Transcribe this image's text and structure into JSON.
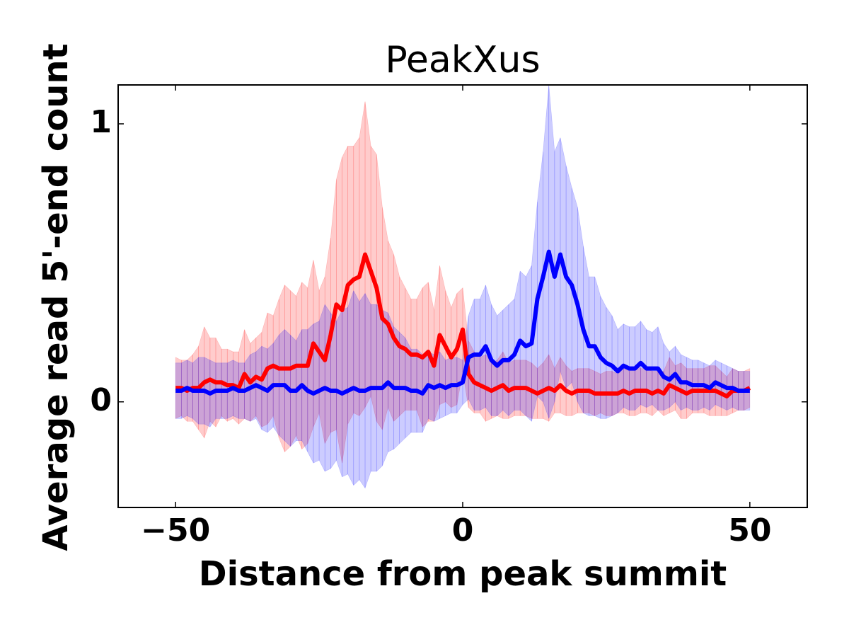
{
  "chart_data": {
    "type": "line",
    "title": "PeakXus",
    "x_label": "Distance from peak summit",
    "y_label": "Average read 5'-end count",
    "x": [
      -50,
      -49,
      -48,
      -47,
      -46,
      -45,
      -44,
      -43,
      -42,
      -41,
      -40,
      -39,
      -38,
      -37,
      -36,
      -35,
      -34,
      -33,
      -32,
      -31,
      -30,
      -29,
      -28,
      -27,
      -26,
      -25,
      -24,
      -23,
      -22,
      -21,
      -20,
      -19,
      -18,
      -17,
      -16,
      -15,
      -14,
      -13,
      -12,
      -11,
      -10,
      -9,
      -8,
      -7,
      -6,
      -5,
      -4,
      -3,
      -2,
      -1,
      0,
      1,
      2,
      3,
      4,
      5,
      6,
      7,
      8,
      9,
      10,
      11,
      12,
      13,
      14,
      15,
      16,
      17,
      18,
      19,
      20,
      21,
      22,
      23,
      24,
      25,
      26,
      27,
      28,
      29,
      30,
      31,
      32,
      33,
      34,
      35,
      36,
      37,
      38,
      39,
      40,
      41,
      42,
      43,
      44,
      45,
      46,
      47,
      48,
      49,
      50
    ],
    "series": [
      {
        "color": "#ff0000",
        "band_color": "rgba(255,0,0,0.2)",
        "values": [
          0.05,
          0.05,
          0.04,
          0.05,
          0.05,
          0.07,
          0.08,
          0.07,
          0.07,
          0.06,
          0.06,
          0.05,
          0.1,
          0.07,
          0.09,
          0.08,
          0.12,
          0.13,
          0.12,
          0.12,
          0.12,
          0.13,
          0.13,
          0.13,
          0.21,
          0.18,
          0.15,
          0.24,
          0.35,
          0.33,
          0.42,
          0.44,
          0.45,
          0.53,
          0.47,
          0.41,
          0.3,
          0.28,
          0.23,
          0.2,
          0.19,
          0.17,
          0.17,
          0.16,
          0.18,
          0.13,
          0.24,
          0.2,
          0.16,
          0.19,
          0.26,
          0.1,
          0.07,
          0.06,
          0.05,
          0.04,
          0.05,
          0.06,
          0.04,
          0.05,
          0.05,
          0.05,
          0.04,
          0.03,
          0.04,
          0.05,
          0.04,
          0.06,
          0.04,
          0.03,
          0.04,
          0.04,
          0.04,
          0.03,
          0.03,
          0.03,
          0.03,
          0.03,
          0.04,
          0.03,
          0.04,
          0.04,
          0.04,
          0.03,
          0.04,
          0.03,
          0.06,
          0.05,
          0.04,
          0.03,
          0.04,
          0.04,
          0.04,
          0.04,
          0.04,
          0.03,
          0.02,
          0.04,
          0.04,
          0.04,
          0.05
        ],
        "error": [
          0.11,
          0.1,
          0.11,
          0.12,
          0.15,
          0.2,
          0.15,
          0.16,
          0.12,
          0.13,
          0.12,
          0.13,
          0.16,
          0.14,
          0.14,
          0.17,
          0.2,
          0.18,
          0.25,
          0.3,
          0.28,
          0.25,
          0.3,
          0.28,
          0.3,
          0.22,
          0.3,
          0.35,
          0.45,
          0.55,
          0.5,
          0.48,
          0.5,
          0.55,
          0.45,
          0.48,
          0.4,
          0.3,
          0.3,
          0.25,
          0.22,
          0.2,
          0.2,
          0.25,
          0.25,
          0.2,
          0.25,
          0.2,
          0.18,
          0.2,
          0.15,
          0.12,
          0.11,
          0.1,
          0.12,
          0.1,
          0.1,
          0.12,
          0.1,
          0.1,
          0.1,
          0.1,
          0.1,
          0.09,
          0.1,
          0.12,
          0.08,
          0.1,
          0.09,
          0.08,
          0.08,
          0.08,
          0.08,
          0.08,
          0.07,
          0.08,
          0.08,
          0.07,
          0.08,
          0.08,
          0.09,
          0.08,
          0.08,
          0.08,
          0.07,
          0.08,
          0.1,
          0.08,
          0.1,
          0.09,
          0.08,
          0.08,
          0.08,
          0.09,
          0.09,
          0.08,
          0.07,
          0.08,
          0.07,
          0.07,
          0.07
        ]
      },
      {
        "color": "#0000ff",
        "band_color": "rgba(0,0,255,0.2)",
        "values": [
          0.04,
          0.04,
          0.05,
          0.04,
          0.04,
          0.04,
          0.03,
          0.04,
          0.04,
          0.04,
          0.05,
          0.04,
          0.04,
          0.05,
          0.06,
          0.05,
          0.04,
          0.06,
          0.06,
          0.06,
          0.04,
          0.04,
          0.06,
          0.04,
          0.03,
          0.04,
          0.05,
          0.04,
          0.04,
          0.03,
          0.04,
          0.05,
          0.04,
          0.04,
          0.05,
          0.05,
          0.05,
          0.07,
          0.05,
          0.05,
          0.05,
          0.04,
          0.04,
          0.03,
          0.06,
          0.05,
          0.06,
          0.05,
          0.06,
          0.06,
          0.07,
          0.16,
          0.17,
          0.17,
          0.2,
          0.15,
          0.13,
          0.15,
          0.15,
          0.17,
          0.22,
          0.2,
          0.21,
          0.37,
          0.45,
          0.54,
          0.45,
          0.53,
          0.45,
          0.42,
          0.35,
          0.26,
          0.2,
          0.2,
          0.16,
          0.14,
          0.13,
          0.11,
          0.13,
          0.12,
          0.12,
          0.14,
          0.12,
          0.12,
          0.12,
          0.09,
          0.08,
          0.1,
          0.07,
          0.07,
          0.06,
          0.06,
          0.06,
          0.05,
          0.07,
          0.06,
          0.05,
          0.05,
          0.04,
          0.04,
          0.04
        ],
        "error": [
          0.1,
          0.1,
          0.1,
          0.1,
          0.12,
          0.12,
          0.12,
          0.1,
          0.1,
          0.1,
          0.1,
          0.1,
          0.1,
          0.12,
          0.12,
          0.15,
          0.15,
          0.15,
          0.18,
          0.2,
          0.2,
          0.18,
          0.2,
          0.22,
          0.25,
          0.25,
          0.3,
          0.28,
          0.25,
          0.3,
          0.3,
          0.35,
          0.32,
          0.35,
          0.3,
          0.3,
          0.28,
          0.25,
          0.22,
          0.2,
          0.18,
          0.15,
          0.15,
          0.14,
          0.12,
          0.12,
          0.12,
          0.1,
          0.1,
          0.1,
          0.08,
          0.15,
          0.2,
          0.2,
          0.22,
          0.2,
          0.18,
          0.18,
          0.2,
          0.2,
          0.25,
          0.25,
          0.28,
          0.35,
          0.45,
          0.6,
          0.45,
          0.42,
          0.4,
          0.35,
          0.35,
          0.3,
          0.25,
          0.25,
          0.22,
          0.2,
          0.18,
          0.15,
          0.15,
          0.15,
          0.15,
          0.15,
          0.14,
          0.13,
          0.15,
          0.12,
          0.1,
          0.1,
          0.1,
          0.09,
          0.09,
          0.09,
          0.08,
          0.08,
          0.08,
          0.08,
          0.08,
          0.07,
          0.07,
          0.07,
          0.07
        ]
      }
    ],
    "xlim": [
      -60,
      60
    ],
    "ylim": [
      -0.38,
      1.14
    ],
    "xticks": [
      {
        "value": -50,
        "label": "−50"
      },
      0,
      50
    ],
    "yticks": [
      0,
      1
    ]
  }
}
